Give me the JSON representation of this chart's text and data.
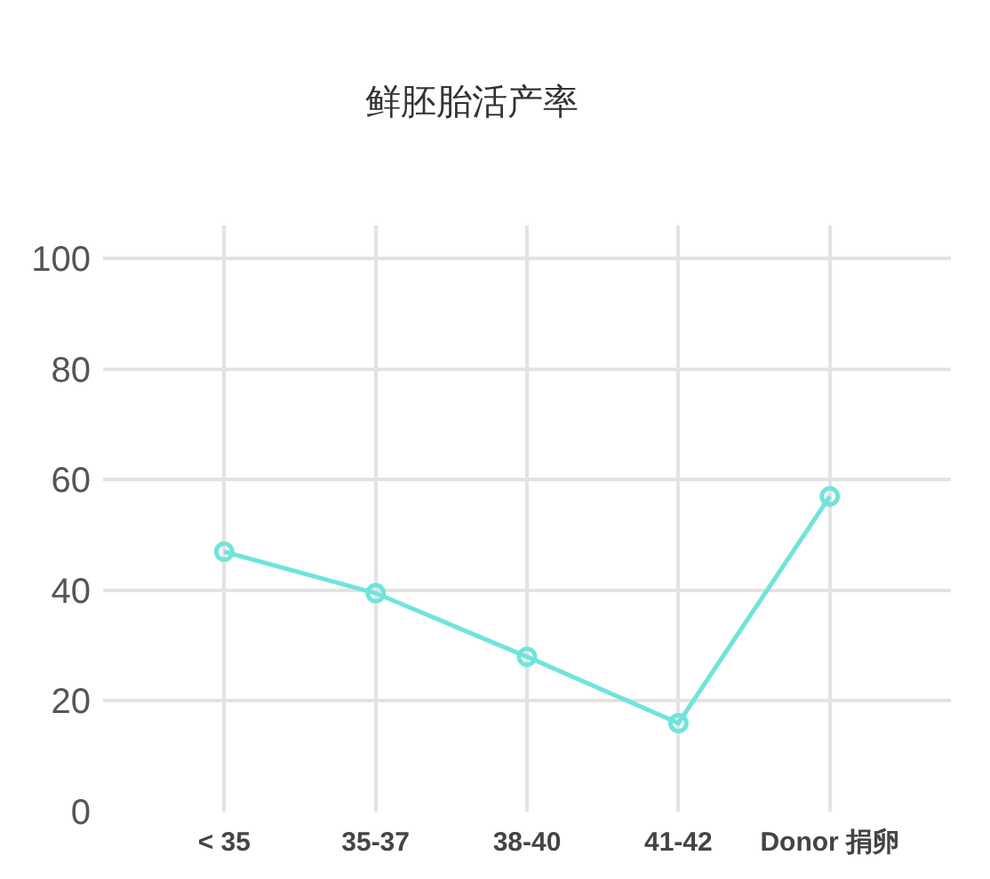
{
  "chart_data": {
    "type": "line",
    "title": "鲜胚胎活产率",
    "categories": [
      "< 35",
      "35-37",
      "38-40",
      "41-42",
      "Donor 捐卵"
    ],
    "series": [
      {
        "color": "#70e4dc",
        "values": [
          47,
          39.5,
          28,
          16,
          57
        ]
      }
    ],
    "ylim": [
      0,
      106
    ],
    "yticks": [
      0,
      20,
      40,
      60,
      80,
      100
    ],
    "grid": true,
    "marker": "circle",
    "line_style": "solid"
  }
}
